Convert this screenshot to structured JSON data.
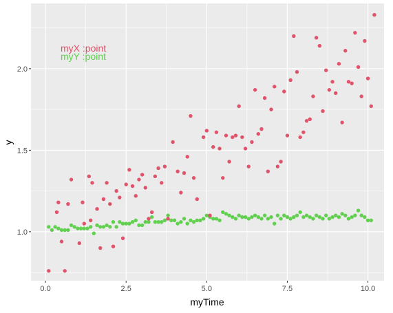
{
  "chart_data": {
    "type": "scatter",
    "xlabel": "myTime",
    "ylabel": "y",
    "xlim": [
      -0.45,
      10.5
    ],
    "ylim": [
      0.7,
      2.4
    ],
    "x_ticks": [
      0,
      2.5,
      5,
      7.5,
      10
    ],
    "x_tick_labels": [
      "0.0",
      "2.5",
      "5.0",
      "7.5",
      "10.0"
    ],
    "y_ticks": [
      1.0,
      1.5,
      2.0
    ],
    "y_tick_labels": [
      "1.0",
      "1.5",
      "2.0"
    ],
    "grid": true,
    "legend_placement": "top-left (inside plot)",
    "series": [
      {
        "name": "myY :point",
        "color": "#61D04F",
        "points": [
          [
            0.1,
            1.03
          ],
          [
            0.2,
            1.01
          ],
          [
            0.3,
            1.03
          ],
          [
            0.4,
            1.02
          ],
          [
            0.5,
            1.01
          ],
          [
            0.6,
            1.01
          ],
          [
            0.7,
            1.01
          ],
          [
            0.8,
            1.04
          ],
          [
            0.9,
            1.03
          ],
          [
            1.0,
            1.02
          ],
          [
            1.1,
            1.02
          ],
          [
            1.2,
            1.02
          ],
          [
            1.3,
            1.02
          ],
          [
            1.4,
            1.03
          ],
          [
            1.5,
            0.99
          ],
          [
            1.6,
            1.04
          ],
          [
            1.7,
            1.03
          ],
          [
            1.8,
            1.03
          ],
          [
            1.9,
            1.04
          ],
          [
            2.0,
            1.03
          ],
          [
            2.1,
            1.06
          ],
          [
            2.2,
            1.03
          ],
          [
            2.3,
            1.06
          ],
          [
            2.4,
            1.05
          ],
          [
            2.5,
            1.05
          ],
          [
            2.6,
            1.05
          ],
          [
            2.7,
            1.06
          ],
          [
            2.8,
            1.07
          ],
          [
            2.9,
            1.04
          ],
          [
            3.0,
            1.04
          ],
          [
            3.1,
            1.06
          ],
          [
            3.2,
            1.06
          ],
          [
            3.3,
            1.09
          ],
          [
            3.4,
            1.06
          ],
          [
            3.5,
            1.06
          ],
          [
            3.6,
            1.06
          ],
          [
            3.7,
            1.07
          ],
          [
            3.8,
            1.1
          ],
          [
            3.9,
            1.07
          ],
          [
            4.0,
            1.07
          ],
          [
            4.1,
            1.05
          ],
          [
            4.2,
            1.06
          ],
          [
            4.3,
            1.08
          ],
          [
            4.4,
            1.05
          ],
          [
            4.5,
            1.07
          ],
          [
            4.6,
            1.06
          ],
          [
            4.7,
            1.07
          ],
          [
            4.8,
            1.07
          ],
          [
            4.9,
            1.08
          ],
          [
            5.0,
            1.1
          ],
          [
            5.1,
            1.09
          ],
          [
            5.2,
            1.08
          ],
          [
            5.3,
            1.08
          ],
          [
            5.4,
            1.07
          ],
          [
            5.5,
            1.12
          ],
          [
            5.6,
            1.11
          ],
          [
            5.7,
            1.1
          ],
          [
            5.8,
            1.09
          ],
          [
            5.9,
            1.08
          ],
          [
            6.0,
            1.1
          ],
          [
            6.1,
            1.09
          ],
          [
            6.2,
            1.09
          ],
          [
            6.3,
            1.08
          ],
          [
            6.4,
            1.09
          ],
          [
            6.5,
            1.1
          ],
          [
            6.6,
            1.09
          ],
          [
            6.7,
            1.08
          ],
          [
            6.8,
            1.1
          ],
          [
            6.9,
            1.08
          ],
          [
            7.0,
            1.09
          ],
          [
            7.1,
            1.05
          ],
          [
            7.2,
            1.1
          ],
          [
            7.3,
            1.08
          ],
          [
            7.4,
            1.1
          ],
          [
            7.5,
            1.09
          ],
          [
            7.6,
            1.08
          ],
          [
            7.7,
            1.09
          ],
          [
            7.8,
            1.1
          ],
          [
            7.9,
            1.12
          ],
          [
            8.0,
            1.09
          ],
          [
            8.1,
            1.1
          ],
          [
            8.2,
            1.09
          ],
          [
            8.3,
            1.08
          ],
          [
            8.4,
            1.1
          ],
          [
            8.5,
            1.09
          ],
          [
            8.6,
            1.08
          ],
          [
            8.7,
            1.1
          ],
          [
            8.8,
            1.08
          ],
          [
            8.9,
            1.09
          ],
          [
            9.0,
            1.1
          ],
          [
            9.1,
            1.09
          ],
          [
            9.2,
            1.11
          ],
          [
            9.3,
            1.1
          ],
          [
            9.4,
            1.08
          ],
          [
            9.5,
            1.09
          ],
          [
            9.6,
            1.1
          ],
          [
            9.7,
            1.13
          ],
          [
            9.8,
            1.1
          ],
          [
            9.9,
            1.09
          ],
          [
            10.0,
            1.07
          ],
          [
            10.1,
            1.07
          ]
        ]
      },
      {
        "name": "myX :point",
        "color": "#DF536B",
        "points": [
          [
            0.1,
            0.76
          ],
          [
            0.35,
            1.12
          ],
          [
            0.4,
            1.18
          ],
          [
            0.5,
            0.94
          ],
          [
            0.6,
            0.76
          ],
          [
            0.7,
            1.17
          ],
          [
            0.8,
            1.32
          ],
          [
            1.05,
            0.93
          ],
          [
            1.15,
            1.18
          ],
          [
            1.2,
            1.05
          ],
          [
            1.35,
            1.34
          ],
          [
            1.4,
            1.07
          ],
          [
            1.45,
            1.3
          ],
          [
            1.6,
            1.14
          ],
          [
            1.7,
            0.9
          ],
          [
            1.8,
            1.2
          ],
          [
            1.9,
            1.3
          ],
          [
            2.0,
            1.17
          ],
          [
            2.1,
            0.91
          ],
          [
            2.2,
            1.25
          ],
          [
            2.3,
            1.21
          ],
          [
            2.4,
            0.96
          ],
          [
            2.5,
            1.29
          ],
          [
            2.6,
            1.38
          ],
          [
            2.7,
            1.28
          ],
          [
            2.8,
            1.22
          ],
          [
            2.9,
            1.32
          ],
          [
            3.0,
            1.35
          ],
          [
            3.1,
            1.27
          ],
          [
            3.2,
            1.08
          ],
          [
            3.3,
            1.12
          ],
          [
            3.4,
            1.34
          ],
          [
            3.5,
            1.39
          ],
          [
            3.6,
            1.3
          ],
          [
            3.7,
            1.4
          ],
          [
            3.8,
            1.08
          ],
          [
            3.95,
            1.55
          ],
          [
            4.1,
            1.37
          ],
          [
            4.2,
            1.24
          ],
          [
            4.3,
            1.36
          ],
          [
            4.4,
            1.46
          ],
          [
            4.5,
            1.71
          ],
          [
            4.6,
            1.33
          ],
          [
            4.7,
            1.2
          ],
          [
            4.9,
            1.58
          ],
          [
            5.0,
            1.62
          ],
          [
            5.1,
            1.1
          ],
          [
            5.2,
            1.52
          ],
          [
            5.3,
            1.61
          ],
          [
            5.4,
            1.51
          ],
          [
            5.5,
            1.33
          ],
          [
            5.6,
            1.59
          ],
          [
            5.7,
            1.43
          ],
          [
            5.8,
            1.58
          ],
          [
            5.9,
            1.59
          ],
          [
            6.0,
            1.77
          ],
          [
            6.1,
            1.58
          ],
          [
            6.2,
            1.51
          ],
          [
            6.3,
            1.4
          ],
          [
            6.4,
            1.55
          ],
          [
            6.5,
            1.87
          ],
          [
            6.6,
            1.6
          ],
          [
            6.7,
            1.63
          ],
          [
            6.8,
            1.82
          ],
          [
            6.9,
            1.37
          ],
          [
            7.0,
            1.75
          ],
          [
            7.1,
            1.89
          ],
          [
            7.2,
            1.4
          ],
          [
            7.3,
            1.43
          ],
          [
            7.4,
            1.86
          ],
          [
            7.5,
            1.59
          ],
          [
            7.6,
            1.93
          ],
          [
            7.7,
            2.2
          ],
          [
            7.8,
            1.98
          ],
          [
            7.9,
            1.58
          ],
          [
            8.0,
            1.61
          ],
          [
            8.1,
            1.68
          ],
          [
            8.2,
            1.69
          ],
          [
            8.3,
            1.83
          ],
          [
            8.4,
            2.19
          ],
          [
            8.5,
            2.14
          ],
          [
            8.6,
            1.74
          ],
          [
            8.7,
            1.99
          ],
          [
            8.8,
            1.87
          ],
          [
            8.9,
            1.92
          ],
          [
            9.0,
            1.85
          ],
          [
            9.1,
            2.03
          ],
          [
            9.2,
            1.67
          ],
          [
            9.3,
            2.11
          ],
          [
            9.4,
            1.92
          ],
          [
            9.5,
            1.91
          ],
          [
            9.6,
            2.22
          ],
          [
            9.7,
            2.01
          ],
          [
            9.8,
            1.83
          ],
          [
            9.9,
            2.17
          ],
          [
            10.0,
            1.94
          ],
          [
            10.1,
            1.77
          ],
          [
            10.2,
            2.33
          ]
        ]
      }
    ],
    "colors": {
      "panel_background": "#EBEBEB",
      "grid_major": "#FFFFFF",
      "tick_label": "#4D4D4D"
    }
  }
}
